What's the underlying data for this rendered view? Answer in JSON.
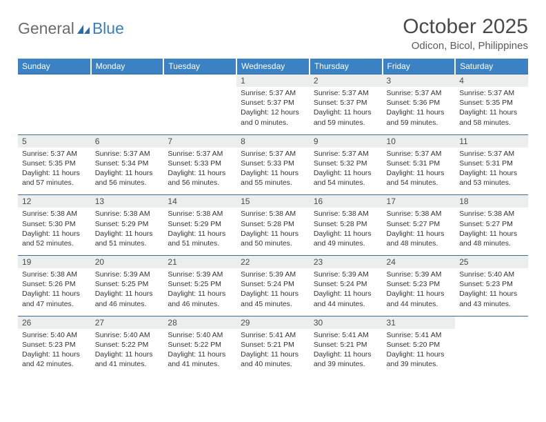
{
  "logo": {
    "textGray": "General",
    "textBlue": "Blue"
  },
  "title": "October 2025",
  "location": "Odicon, Bicol, Philippines",
  "colors": {
    "headerBg": "#3b82c4",
    "dayBg": "#eceded",
    "borderTop": "#3b6a94",
    "logoGray": "#6b6b6b",
    "logoBlue": "#3b7ec0"
  },
  "weekdays": [
    "Sunday",
    "Monday",
    "Tuesday",
    "Wednesday",
    "Thursday",
    "Friday",
    "Saturday"
  ],
  "weeks": [
    [
      null,
      null,
      null,
      {
        "n": "1",
        "sr": "5:37 AM",
        "ss": "5:37 PM",
        "dl": "12 hours and 0 minutes."
      },
      {
        "n": "2",
        "sr": "5:37 AM",
        "ss": "5:37 PM",
        "dl": "11 hours and 59 minutes."
      },
      {
        "n": "3",
        "sr": "5:37 AM",
        "ss": "5:36 PM",
        "dl": "11 hours and 59 minutes."
      },
      {
        "n": "4",
        "sr": "5:37 AM",
        "ss": "5:35 PM",
        "dl": "11 hours and 58 minutes."
      }
    ],
    [
      {
        "n": "5",
        "sr": "5:37 AM",
        "ss": "5:35 PM",
        "dl": "11 hours and 57 minutes."
      },
      {
        "n": "6",
        "sr": "5:37 AM",
        "ss": "5:34 PM",
        "dl": "11 hours and 56 minutes."
      },
      {
        "n": "7",
        "sr": "5:37 AM",
        "ss": "5:33 PM",
        "dl": "11 hours and 56 minutes."
      },
      {
        "n": "8",
        "sr": "5:37 AM",
        "ss": "5:33 PM",
        "dl": "11 hours and 55 minutes."
      },
      {
        "n": "9",
        "sr": "5:37 AM",
        "ss": "5:32 PM",
        "dl": "11 hours and 54 minutes."
      },
      {
        "n": "10",
        "sr": "5:37 AM",
        "ss": "5:31 PM",
        "dl": "11 hours and 54 minutes."
      },
      {
        "n": "11",
        "sr": "5:37 AM",
        "ss": "5:31 PM",
        "dl": "11 hours and 53 minutes."
      }
    ],
    [
      {
        "n": "12",
        "sr": "5:38 AM",
        "ss": "5:30 PM",
        "dl": "11 hours and 52 minutes."
      },
      {
        "n": "13",
        "sr": "5:38 AM",
        "ss": "5:29 PM",
        "dl": "11 hours and 51 minutes."
      },
      {
        "n": "14",
        "sr": "5:38 AM",
        "ss": "5:29 PM",
        "dl": "11 hours and 51 minutes."
      },
      {
        "n": "15",
        "sr": "5:38 AM",
        "ss": "5:28 PM",
        "dl": "11 hours and 50 minutes."
      },
      {
        "n": "16",
        "sr": "5:38 AM",
        "ss": "5:28 PM",
        "dl": "11 hours and 49 minutes."
      },
      {
        "n": "17",
        "sr": "5:38 AM",
        "ss": "5:27 PM",
        "dl": "11 hours and 48 minutes."
      },
      {
        "n": "18",
        "sr": "5:38 AM",
        "ss": "5:27 PM",
        "dl": "11 hours and 48 minutes."
      }
    ],
    [
      {
        "n": "19",
        "sr": "5:38 AM",
        "ss": "5:26 PM",
        "dl": "11 hours and 47 minutes."
      },
      {
        "n": "20",
        "sr": "5:39 AM",
        "ss": "5:25 PM",
        "dl": "11 hours and 46 minutes."
      },
      {
        "n": "21",
        "sr": "5:39 AM",
        "ss": "5:25 PM",
        "dl": "11 hours and 46 minutes."
      },
      {
        "n": "22",
        "sr": "5:39 AM",
        "ss": "5:24 PM",
        "dl": "11 hours and 45 minutes."
      },
      {
        "n": "23",
        "sr": "5:39 AM",
        "ss": "5:24 PM",
        "dl": "11 hours and 44 minutes."
      },
      {
        "n": "24",
        "sr": "5:39 AM",
        "ss": "5:23 PM",
        "dl": "11 hours and 44 minutes."
      },
      {
        "n": "25",
        "sr": "5:40 AM",
        "ss": "5:23 PM",
        "dl": "11 hours and 43 minutes."
      }
    ],
    [
      {
        "n": "26",
        "sr": "5:40 AM",
        "ss": "5:23 PM",
        "dl": "11 hours and 42 minutes."
      },
      {
        "n": "27",
        "sr": "5:40 AM",
        "ss": "5:22 PM",
        "dl": "11 hours and 41 minutes."
      },
      {
        "n": "28",
        "sr": "5:40 AM",
        "ss": "5:22 PM",
        "dl": "11 hours and 41 minutes."
      },
      {
        "n": "29",
        "sr": "5:41 AM",
        "ss": "5:21 PM",
        "dl": "11 hours and 40 minutes."
      },
      {
        "n": "30",
        "sr": "5:41 AM",
        "ss": "5:21 PM",
        "dl": "11 hours and 39 minutes."
      },
      {
        "n": "31",
        "sr": "5:41 AM",
        "ss": "5:20 PM",
        "dl": "11 hours and 39 minutes."
      },
      null
    ]
  ],
  "labels": {
    "sunrise": "Sunrise: ",
    "sunset": "Sunset: ",
    "daylight": "Daylight: "
  }
}
